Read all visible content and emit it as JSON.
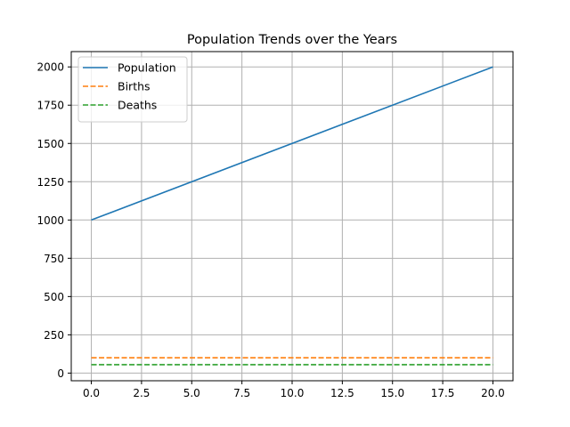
{
  "chart_data": {
    "type": "line",
    "title": "Population Trends over the Years",
    "xlabel": "",
    "ylabel": "",
    "xlim": [
      -1,
      21
    ],
    "ylim": [
      -50,
      2100
    ],
    "x_ticks": [
      0,
      2.5,
      5,
      7.5,
      10,
      12.5,
      15,
      17.5,
      20
    ],
    "x_tick_labels": [
      "0.0",
      "2.5",
      "5.0",
      "7.5",
      "10.0",
      "12.5",
      "15.0",
      "17.5",
      "20.0"
    ],
    "y_ticks": [
      0,
      250,
      500,
      750,
      1000,
      1250,
      1500,
      1750,
      2000
    ],
    "y_tick_labels": [
      "0",
      "250",
      "500",
      "750",
      "1000",
      "1250",
      "1500",
      "1750",
      "2000"
    ],
    "grid": true,
    "legend_position": "top-left",
    "series": [
      {
        "name": "Population",
        "x": [
          0,
          20
        ],
        "y": [
          1000,
          2000
        ],
        "color": "#1f77b4",
        "style": "solid"
      },
      {
        "name": "Births",
        "x": [
          0,
          20
        ],
        "y": [
          100,
          100
        ],
        "color": "#ff7f0e",
        "style": "dashed"
      },
      {
        "name": "Deaths",
        "x": [
          0,
          20
        ],
        "y": [
          55,
          55
        ],
        "color": "#2ca02c",
        "style": "dashed"
      }
    ]
  }
}
